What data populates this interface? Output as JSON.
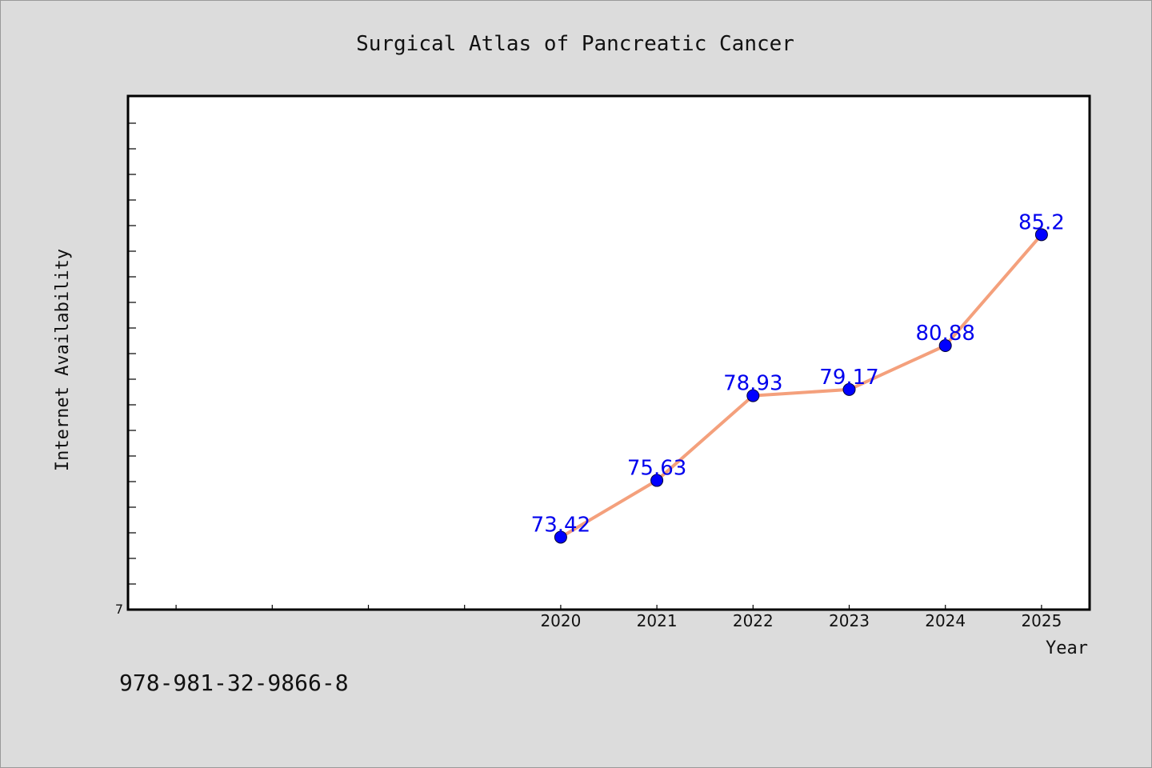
{
  "chart_data": {
    "type": "line",
    "title": "Surgical Atlas of Pancreatic Cancer",
    "xlabel": "Year",
    "ylabel": "Internet Availability",
    "x": [
      2020,
      2021,
      2022,
      2023,
      2024,
      2025
    ],
    "x_tick_labels": [
      "2020",
      "2021",
      "2022",
      "2023",
      "2024",
      "2025"
    ],
    "xlim": [
      2015.5,
      2025.5
    ],
    "series": [
      {
        "values": [
          73.42,
          75.63,
          78.93,
          79.17,
          80.88,
          85.2
        ],
        "labels": [
          "73.42",
          "75.63",
          "78.93",
          "79.17",
          "80.88",
          "85.2"
        ]
      }
    ],
    "ylim": [
      70.6,
      90.6
    ],
    "y_tick_labels_shown": [
      "7"
    ],
    "grid": false,
    "line_color": "#f4a07c",
    "marker_color": "#0000ff",
    "label_color": "#0000ee"
  },
  "footer": {
    "isbn": "978-981-32-9866-8"
  }
}
